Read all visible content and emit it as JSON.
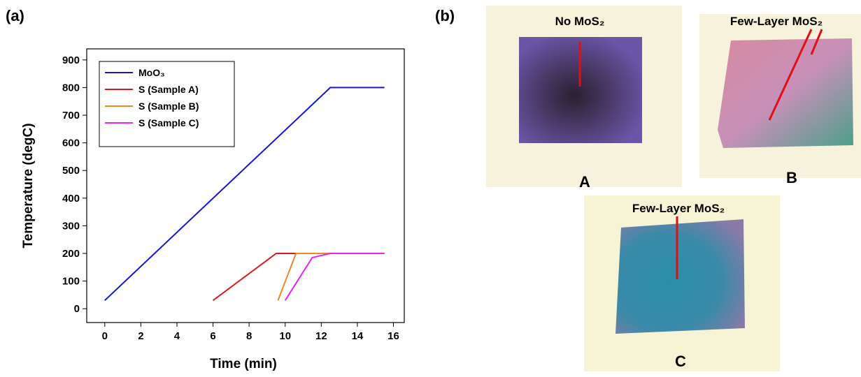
{
  "panel_labels": [
    "(a)",
    "(b)"
  ],
  "chart_data": {
    "type": "line",
    "xlabel": "Time (min)",
    "ylabel": "Temperature (degC)",
    "xlim": [
      -1,
      16.6
    ],
    "xticks": [
      0,
      2,
      4,
      6,
      8,
      10,
      12,
      14,
      16
    ],
    "ylim": [
      -50,
      940
    ],
    "yticks": [
      0,
      100,
      200,
      300,
      400,
      500,
      600,
      700,
      800,
      900
    ],
    "legend": "upper left",
    "series": [
      {
        "name": "MoO₃",
        "color": "#1515e0",
        "x": [
          0,
          12.5,
          15.5
        ],
        "values": [
          30,
          800,
          800
        ]
      },
      {
        "name": "S (Sample A)",
        "color": "#e01818",
        "x": [
          6,
          9.5,
          15.5
        ],
        "values": [
          30,
          200,
          200
        ]
      },
      {
        "name": "S (Sample B)",
        "color": "#f08a20",
        "x": [
          9.6,
          10.6,
          15.5
        ],
        "values": [
          30,
          200,
          200
        ]
      },
      {
        "name": "S (Sample C)",
        "color": "#f020f0",
        "x": [
          10,
          11.5,
          12.5,
          15.5
        ],
        "values": [
          30,
          185,
          200,
          200
        ]
      }
    ]
  },
  "photos": [
    {
      "label": "No MoS₂",
      "letter": "A"
    },
    {
      "label": "Few-Layer MoS₂",
      "letter": "B"
    },
    {
      "label": "Few-Layer MoS₂",
      "letter": "C"
    }
  ]
}
